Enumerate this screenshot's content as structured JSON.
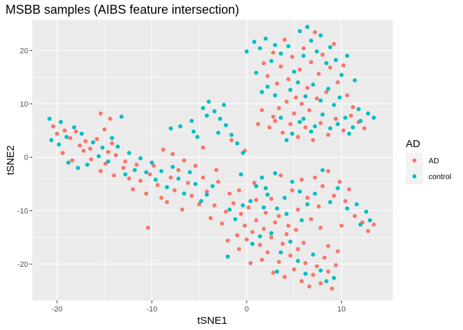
{
  "chart_data": {
    "type": "scatter",
    "title": "MSBB samples (AIBS feature intersection)",
    "xlabel": "tSNE1",
    "ylabel": "tSNE2",
    "xlim": [
      -22.6,
      15.4
    ],
    "ylim": [
      -26.8,
      25.7
    ],
    "x_ticks": [
      -20,
      -10,
      0,
      10
    ],
    "y_ticks": [
      -20,
      -10,
      0,
      10,
      20
    ],
    "grid": true,
    "legend": {
      "title": "AD",
      "position": "right"
    },
    "colors": {
      "AD": "#F8766D",
      "control": "#00BFC4",
      "panel": "#EBEBEB",
      "grid": "#FFFFFF",
      "tick": "#333333"
    },
    "series": [
      {
        "name": "AD",
        "points": [
          [
            -20.4,
            5.8
          ],
          [
            -20.0,
            4.4
          ],
          [
            -19.2,
            5.0
          ],
          [
            -18.6,
            3.6
          ],
          [
            -18.0,
            4.8
          ],
          [
            -17.6,
            2.2
          ],
          [
            -17.0,
            3.0
          ],
          [
            -16.5,
            1.6
          ],
          [
            -15.8,
            3.4
          ],
          [
            -15.4,
            8.2
          ],
          [
            -15.0,
            5.2
          ],
          [
            -14.6,
            1.0
          ],
          [
            -14.2,
            2.6
          ],
          [
            -14.4,
            7.2
          ],
          [
            -13.8,
            0.4
          ],
          [
            -14.9,
            -1.2
          ],
          [
            -15.4,
            -2.6
          ],
          [
            -14.0,
            -3.4
          ],
          [
            -13.0,
            -2.0
          ],
          [
            -12.4,
            -4.0
          ],
          [
            -19.4,
            0.8
          ],
          [
            -18.4,
            -0.6
          ],
          [
            -17.2,
            1.2
          ],
          [
            -16.4,
            -0.4
          ],
          [
            -12.0,
            -6.0
          ],
          [
            -11.2,
            -4.4
          ],
          [
            -10.6,
            -6.8
          ],
          [
            -10.2,
            -3.2
          ],
          [
            -9.8,
            -1.6
          ],
          [
            -9.4,
            -5.2
          ],
          [
            -9.0,
            -7.6
          ],
          [
            -8.4,
            -8.4
          ],
          [
            -8.0,
            -3.8
          ],
          [
            -7.6,
            -6.2
          ],
          [
            -7.2,
            -2.4
          ],
          [
            -6.8,
            -9.8
          ],
          [
            -6.2,
            -4.8
          ],
          [
            -5.8,
            -7.2
          ],
          [
            -5.4,
            -1.6
          ],
          [
            -5.0,
            -8.8
          ],
          [
            -4.6,
            -3.8
          ],
          [
            -4.2,
            -6.4
          ],
          [
            -3.8,
            -11.4
          ],
          [
            -3.4,
            -9.0
          ],
          [
            -3.0,
            -4.6
          ],
          [
            -2.6,
            -12.4
          ],
          [
            -2.2,
            -10.2
          ],
          [
            -1.8,
            -6.8
          ],
          [
            -1.4,
            -8.6
          ],
          [
            -1.0,
            -14.6
          ],
          [
            -0.6,
            -10.6
          ],
          [
            -0.2,
            -12.8
          ],
          [
            0.2,
            -9.4
          ],
          [
            0.6,
            -14.0
          ],
          [
            1.0,
            -11.8
          ],
          [
            1.4,
            -16.4
          ],
          [
            1.8,
            -13.4
          ],
          [
            2.2,
            -17.8
          ],
          [
            2.6,
            -15.0
          ],
          [
            3.0,
            -12.2
          ],
          [
            3.4,
            -19.6
          ],
          [
            3.8,
            -16.2
          ],
          [
            4.2,
            -14.4
          ],
          [
            4.6,
            -18.4
          ],
          [
            5.0,
            -21.0
          ],
          [
            5.4,
            -17.2
          ],
          [
            5.8,
            -23.2
          ],
          [
            6.2,
            -19.8
          ],
          [
            6.6,
            -24.2
          ],
          [
            7.0,
            -22.0
          ],
          [
            7.4,
            -20.4
          ],
          [
            7.8,
            -23.6
          ],
          [
            8.2,
            -18.8
          ],
          [
            8.6,
            -21.4
          ],
          [
            9.0,
            -24.6
          ],
          [
            9.4,
            -20.2
          ],
          [
            -10.4,
            -13.2
          ],
          [
            -3.2,
            -2.4
          ],
          [
            -6.6,
            -0.6
          ],
          [
            -8.8,
            1.4
          ],
          [
            0.8,
            -4.8
          ],
          [
            2.6,
            -7.8
          ],
          [
            3.6,
            -3.4
          ],
          [
            4.8,
            -6.2
          ],
          [
            5.4,
            -9.8
          ],
          [
            5.8,
            -4.2
          ],
          [
            6.4,
            -7.6
          ],
          [
            7.2,
            -3.8
          ],
          [
            7.6,
            -9.2
          ],
          [
            8.0,
            -5.4
          ],
          [
            8.6,
            -2.6
          ],
          [
            9.2,
            -7.2
          ],
          [
            9.8,
            -4.6
          ],
          [
            10.4,
            -8.2
          ],
          [
            10.8,
            -6.0
          ],
          [
            11.4,
            -11.0
          ],
          [
            12.2,
            -12.2
          ],
          [
            12.8,
            -13.8
          ],
          [
            13.4,
            -12.6
          ],
          [
            10.0,
            -12.8
          ],
          [
            1.8,
            17.6
          ],
          [
            2.2,
            15.2
          ],
          [
            2.8,
            19.6
          ],
          [
            3.2,
            13.8
          ],
          [
            3.6,
            17.0
          ],
          [
            4.0,
            22.0
          ],
          [
            4.4,
            14.6
          ],
          [
            4.8,
            18.8
          ],
          [
            5.2,
            11.2
          ],
          [
            5.6,
            16.4
          ],
          [
            6.0,
            20.4
          ],
          [
            6.4,
            13.0
          ],
          [
            6.8,
            17.8
          ],
          [
            7.2,
            23.4
          ],
          [
            7.6,
            15.6
          ],
          [
            8.0,
            19.2
          ],
          [
            8.4,
            12.2
          ],
          [
            8.8,
            16.8
          ],
          [
            9.2,
            21.2
          ],
          [
            9.6,
            14.0
          ],
          [
            10.2,
            17.2
          ],
          [
            10.6,
            11.6
          ],
          [
            11.2,
            9.4
          ],
          [
            4.2,
            10.4
          ],
          [
            5.0,
            8.2
          ],
          [
            5.8,
            10.0
          ],
          [
            6.6,
            8.8
          ],
          [
            7.4,
            11.0
          ],
          [
            3.4,
            9.2
          ],
          [
            2.8,
            7.6
          ],
          [
            2.4,
            5.6
          ],
          [
            3.0,
            6.8
          ],
          [
            3.8,
            4.6
          ],
          [
            4.6,
            6.2
          ],
          [
            5.4,
            3.8
          ],
          [
            6.2,
            5.6
          ],
          [
            7.0,
            3.2
          ],
          [
            7.8,
            6.4
          ],
          [
            8.6,
            4.2
          ],
          [
            9.4,
            7.2
          ],
          [
            10.2,
            5.0
          ],
          [
            11.0,
            7.8
          ],
          [
            11.8,
            6.6
          ],
          [
            12.4,
            5.4
          ],
          [
            1.2,
            6.2
          ],
          [
            1.6,
            8.8
          ],
          [
            -0.2,
            1.2
          ],
          [
            -1.6,
            3.2
          ],
          [
            -4.6,
            1.8
          ],
          [
            -7.8,
            0.6
          ],
          [
            -11.6,
            -1.4
          ],
          [
            -12.8,
            -0.8
          ],
          [
            -2.0,
            -15.6
          ],
          [
            -0.8,
            -17.2
          ],
          [
            0.4,
            -19.8
          ],
          [
            1.6,
            -19.2
          ],
          [
            2.8,
            -21.6
          ],
          [
            4.0,
            -22.4
          ],
          [
            6.0,
            -16.0
          ],
          [
            8.6,
            -16.6
          ],
          [
            9.6,
            -17.6
          ],
          [
            3.4,
            -11.0
          ],
          [
            2.0,
            -10.4
          ],
          [
            4.4,
            -12.8
          ],
          [
            1.0,
            -8.0
          ],
          [
            -0.8,
            -6.2
          ],
          [
            5.2,
            -13.6
          ],
          [
            6.8,
            -11.6
          ],
          [
            7.8,
            -13.2
          ],
          [
            0.0,
            -15.4
          ]
        ]
      },
      {
        "name": "control",
        "points": [
          [
            -20.8,
            7.2
          ],
          [
            -20.6,
            3.2
          ],
          [
            -19.8,
            2.4
          ],
          [
            -19.6,
            6.6
          ],
          [
            -19.0,
            3.8
          ],
          [
            -18.8,
            -1.0
          ],
          [
            -18.2,
            5.6
          ],
          [
            -17.8,
            -2.0
          ],
          [
            -17.4,
            4.4
          ],
          [
            -16.8,
            -1.4
          ],
          [
            -16.2,
            2.8
          ],
          [
            -15.6,
            0.2
          ],
          [
            -15.2,
            1.8
          ],
          [
            -14.6,
            -0.8
          ],
          [
            -14.2,
            3.6
          ],
          [
            -13.6,
            2.0
          ],
          [
            -13.2,
            7.6
          ],
          [
            -12.8,
            -3.2
          ],
          [
            -12.4,
            0.8
          ],
          [
            -11.8,
            -2.4
          ],
          [
            -11.2,
            -0.2
          ],
          [
            -10.6,
            -2.8
          ],
          [
            -10.0,
            -1.0
          ],
          [
            -9.6,
            -4.2
          ],
          [
            -9.0,
            -2.6
          ],
          [
            -8.4,
            -5.6
          ],
          [
            -7.8,
            -1.8
          ],
          [
            -7.2,
            -4.0
          ],
          [
            -6.6,
            -6.8
          ],
          [
            -6.0,
            -2.8
          ],
          [
            -5.4,
            -5.0
          ],
          [
            -4.8,
            -8.2
          ],
          [
            -4.2,
            -7.0
          ],
          [
            -3.6,
            -5.4
          ],
          [
            -8.0,
            5.4
          ],
          [
            -7.0,
            5.8
          ],
          [
            -5.8,
            6.8
          ],
          [
            -5.2,
            3.8
          ],
          [
            -4.6,
            9.2
          ],
          [
            -4.0,
            10.4
          ],
          [
            -3.4,
            8.6
          ],
          [
            -2.8,
            7.2
          ],
          [
            -2.2,
            6.0
          ],
          [
            -1.6,
            4.2
          ],
          [
            -1.0,
            2.6
          ],
          [
            -4.2,
            7.8
          ],
          [
            -3.0,
            4.6
          ],
          [
            -2.4,
            9.8
          ],
          [
            -0.4,
            0.8
          ],
          [
            -5.6,
            4.8
          ],
          [
            -1.8,
            -9.8
          ],
          [
            -1.2,
            -11.6
          ],
          [
            -0.4,
            -9.0
          ],
          [
            0.4,
            -8.2
          ],
          [
            1.0,
            -5.4
          ],
          [
            1.6,
            -3.8
          ],
          [
            2.2,
            -7.0
          ],
          [
            3.2,
            -9.6
          ],
          [
            4.0,
            -7.6
          ],
          [
            4.8,
            -4.6
          ],
          [
            5.6,
            -6.4
          ],
          [
            6.4,
            -8.8
          ],
          [
            7.2,
            -6.8
          ],
          [
            8.0,
            -2.4
          ],
          [
            8.8,
            -8.4
          ],
          [
            9.6,
            -5.8
          ],
          [
            10.6,
            -9.6
          ],
          [
            11.6,
            -8.8
          ],
          [
            12.6,
            -10.2
          ],
          [
            13.0,
            -11.8
          ],
          [
            2.6,
            -14.2
          ],
          [
            3.6,
            -17.8
          ],
          [
            4.6,
            -15.8
          ],
          [
            5.4,
            -19.4
          ],
          [
            6.2,
            -21.8
          ],
          [
            7.0,
            -18.2
          ],
          [
            7.8,
            -21.2
          ],
          [
            8.4,
            -23.2
          ],
          [
            9.2,
            -22.6
          ],
          [
            3.2,
            -21.4
          ],
          [
            -2.0,
            -18.6
          ],
          [
            0.6,
            -16.2
          ],
          [
            1.4,
            -14.8
          ],
          [
            4.2,
            -10.6
          ],
          [
            5.8,
            -11.8
          ],
          [
            0.0,
            19.8
          ],
          [
            0.8,
            21.6
          ],
          [
            1.4,
            20.4
          ],
          [
            2.0,
            22.2
          ],
          [
            2.6,
            18.0
          ],
          [
            3.0,
            21.0
          ],
          [
            3.6,
            19.4
          ],
          [
            4.4,
            20.8
          ],
          [
            5.0,
            16.0
          ],
          [
            5.6,
            23.6
          ],
          [
            6.0,
            19.0
          ],
          [
            6.4,
            24.4
          ],
          [
            6.8,
            21.8
          ],
          [
            7.4,
            19.8
          ],
          [
            7.8,
            22.8
          ],
          [
            8.4,
            17.6
          ],
          [
            8.8,
            20.6
          ],
          [
            9.4,
            18.2
          ],
          [
            10.0,
            15.4
          ],
          [
            10.6,
            19.0
          ],
          [
            11.4,
            14.4
          ],
          [
            4.6,
            12.6
          ],
          [
            5.4,
            14.0
          ],
          [
            6.2,
            11.4
          ],
          [
            7.0,
            13.6
          ],
          [
            7.8,
            10.6
          ],
          [
            8.6,
            12.8
          ],
          [
            9.2,
            9.8
          ],
          [
            9.8,
            11.2
          ],
          [
            3.0,
            11.6
          ],
          [
            2.2,
            13.2
          ],
          [
            1.0,
            15.8
          ],
          [
            1.6,
            12.2
          ],
          [
            6.0,
            7.2
          ],
          [
            7.2,
            5.8
          ],
          [
            8.0,
            8.0
          ],
          [
            8.8,
            5.4
          ],
          [
            9.6,
            6.2
          ],
          [
            10.4,
            7.4
          ],
          [
            11.2,
            5.6
          ],
          [
            12.0,
            6.8
          ],
          [
            12.8,
            8.2
          ],
          [
            13.4,
            7.4
          ],
          [
            4.8,
            4.4
          ],
          [
            5.6,
            6.6
          ],
          [
            3.6,
            7.4
          ],
          [
            4.2,
            3.2
          ],
          [
            6.8,
            4.8
          ],
          [
            11.8,
            9.0
          ],
          [
            10.8,
            4.4
          ],
          [
            2.0,
            -5.8
          ],
          [
            3.0,
            -3.0
          ],
          [
            -0.6,
            -3.2
          ],
          [
            1.8,
            -9.4
          ],
          [
            12.0,
            -12.6
          ]
        ]
      }
    ]
  }
}
